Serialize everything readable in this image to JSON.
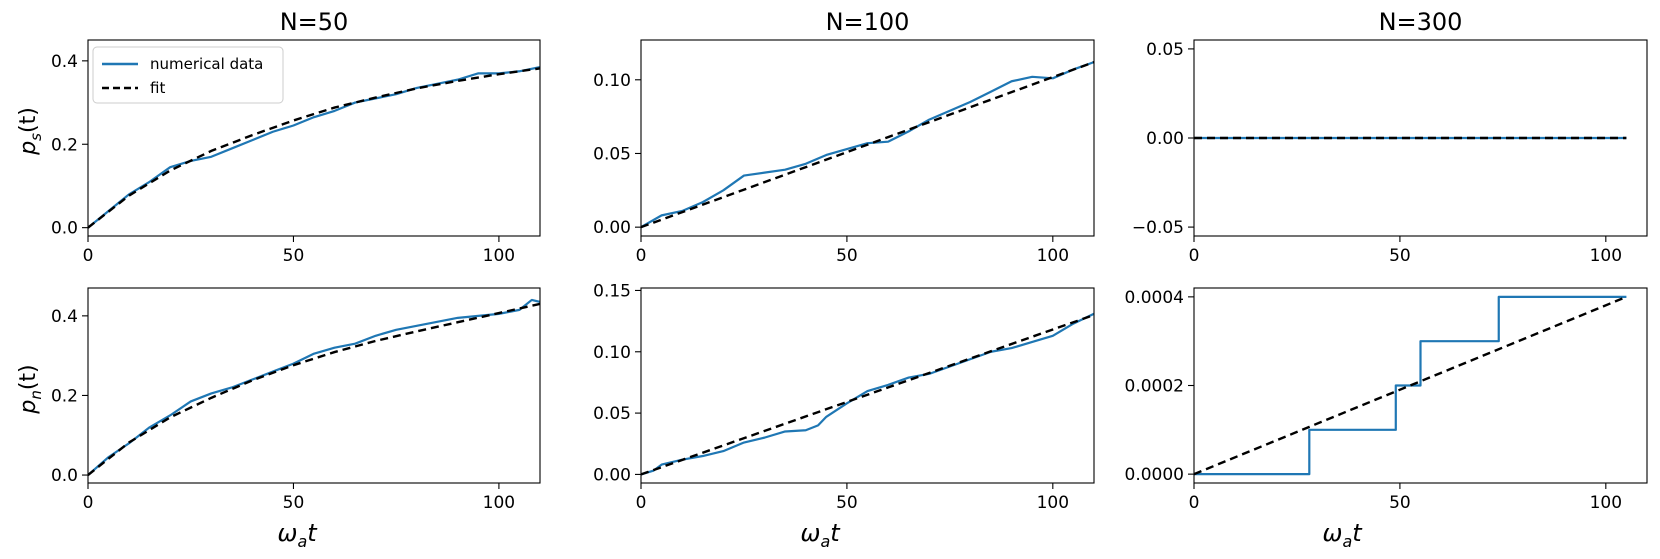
{
  "legend": {
    "entries": [
      {
        "label": "numerical data",
        "color": "#1f77b4",
        "style": "solid"
      },
      {
        "label": "fit",
        "color": "#000000",
        "style": "dashed"
      }
    ],
    "placement": "upper-left of top-left panel"
  },
  "row_labels": {
    "top": {
      "base": "p",
      "sub": "s",
      "tail": "(t)"
    },
    "bottom": {
      "base": "p",
      "sub": "n",
      "tail": "(t)"
    }
  },
  "x_label": {
    "base": "ω",
    "sub": "a",
    "tail": "t"
  },
  "colors": {
    "data": "#1f77b4",
    "fit": "#000000"
  },
  "chart_data": [
    {
      "type": "line",
      "title": "N=50",
      "xlabel": "",
      "ylabel": "p_s(t)",
      "xlim": [
        0,
        110
      ],
      "ylim": [
        -0.02,
        0.45
      ],
      "xticks": [
        0,
        50,
        100
      ],
      "xtick_labels": [
        "0",
        "50",
        "100"
      ],
      "yticks": [
        0,
        0.2,
        0.4
      ],
      "ytick_labels": [
        "0.0",
        "0.2",
        "0.4"
      ],
      "series": [
        {
          "name": "numerical data",
          "style": "data",
          "x": [
            0,
            5,
            10,
            15,
            20,
            25,
            30,
            35,
            40,
            45,
            50,
            55,
            60,
            65,
            70,
            75,
            80,
            85,
            90,
            95,
            100,
            105,
            110
          ],
          "y": [
            0,
            0.04,
            0.08,
            0.11,
            0.145,
            0.16,
            0.17,
            0.19,
            0.21,
            0.23,
            0.245,
            0.265,
            0.28,
            0.3,
            0.31,
            0.32,
            0.335,
            0.345,
            0.355,
            0.37,
            0.37,
            0.375,
            0.385
          ]
        },
        {
          "name": "fit",
          "style": "fit",
          "x": [
            0,
            10,
            20,
            30,
            40,
            50,
            60,
            70,
            80,
            90,
            100,
            110
          ],
          "y": [
            0,
            0.077,
            0.137,
            0.184,
            0.222,
            0.257,
            0.288,
            0.312,
            0.334,
            0.352,
            0.368,
            0.382
          ]
        }
      ]
    },
    {
      "type": "line",
      "title": "N=100",
      "xlabel": "",
      "ylabel": "",
      "xlim": [
        0,
        110
      ],
      "ylim": [
        -0.006,
        0.127
      ],
      "xticks": [
        0,
        50,
        100
      ],
      "xtick_labels": [
        "0",
        "50",
        "100"
      ],
      "yticks": [
        0,
        0.05,
        0.1
      ],
      "ytick_labels": [
        "0.00",
        "0.05",
        "0.10"
      ],
      "series": [
        {
          "name": "numerical data",
          "style": "data",
          "x": [
            0,
            5,
            10,
            15,
            20,
            25,
            30,
            35,
            40,
            45,
            50,
            55,
            60,
            65,
            70,
            75,
            80,
            85,
            90,
            95,
            100,
            105,
            110
          ],
          "y": [
            0,
            0.008,
            0.011,
            0.017,
            0.025,
            0.035,
            0.037,
            0.039,
            0.043,
            0.049,
            0.053,
            0.057,
            0.058,
            0.065,
            0.073,
            0.079,
            0.085,
            0.092,
            0.099,
            0.102,
            0.101,
            0.107,
            0.112
          ]
        },
        {
          "name": "fit",
          "style": "fit",
          "x": [
            0,
            110
          ],
          "y": [
            0,
            0.112
          ]
        }
      ]
    },
    {
      "type": "line",
      "title": "N=300",
      "xlabel": "",
      "ylabel": "",
      "xlim": [
        0,
        110
      ],
      "ylim": [
        -0.055,
        0.055
      ],
      "xticks": [
        0,
        50,
        100
      ],
      "xtick_labels": [
        "0",
        "50",
        "100"
      ],
      "yticks": [
        -0.05,
        0,
        0.05
      ],
      "ytick_labels": [
        "−0.05",
        "0.00",
        "0.05"
      ],
      "series": [
        {
          "name": "numerical data",
          "style": "data",
          "x": [
            0,
            105
          ],
          "y": [
            0,
            0
          ]
        },
        {
          "name": "fit",
          "style": "fit",
          "x": [
            0,
            105
          ],
          "y": [
            0,
            0
          ]
        }
      ]
    },
    {
      "type": "line",
      "title": "",
      "xlabel": "ω_a t",
      "ylabel": "p_n(t)",
      "xlim": [
        0,
        110
      ],
      "ylim": [
        -0.02,
        0.47
      ],
      "xticks": [
        0,
        50,
        100
      ],
      "xtick_labels": [
        "0",
        "50",
        "100"
      ],
      "yticks": [
        0,
        0.2,
        0.4
      ],
      "ytick_labels": [
        "0.0",
        "0.2",
        "0.4"
      ],
      "series": [
        {
          "name": "numerical data",
          "style": "data",
          "x": [
            0,
            5,
            10,
            15,
            20,
            25,
            30,
            35,
            40,
            45,
            50,
            55,
            60,
            65,
            70,
            75,
            80,
            85,
            90,
            95,
            100,
            105,
            108,
            110
          ],
          "y": [
            0,
            0.045,
            0.08,
            0.12,
            0.15,
            0.185,
            0.205,
            0.22,
            0.24,
            0.26,
            0.28,
            0.305,
            0.32,
            0.33,
            0.35,
            0.365,
            0.375,
            0.385,
            0.395,
            0.4,
            0.405,
            0.415,
            0.44,
            0.435
          ]
        },
        {
          "name": "fit",
          "style": "fit",
          "x": [
            0,
            10,
            20,
            30,
            40,
            50,
            60,
            70,
            80,
            90,
            100,
            110
          ],
          "y": [
            0,
            0.082,
            0.145,
            0.194,
            0.238,
            0.276,
            0.309,
            0.337,
            0.361,
            0.384,
            0.407,
            0.43
          ]
        }
      ]
    },
    {
      "type": "line",
      "title": "",
      "xlabel": "ω_a t",
      "ylabel": "",
      "xlim": [
        0,
        110
      ],
      "ylim": [
        -0.007,
        0.152
      ],
      "xticks": [
        0,
        50,
        100
      ],
      "xtick_labels": [
        "0",
        "50",
        "100"
      ],
      "yticks": [
        0,
        0.05,
        0.1,
        0.15
      ],
      "ytick_labels": [
        "0.00",
        "0.05",
        "0.10",
        "0.15"
      ],
      "series": [
        {
          "name": "numerical data",
          "style": "data",
          "x": [
            0,
            3,
            5,
            10,
            15,
            20,
            25,
            30,
            35,
            40,
            43,
            45,
            50,
            55,
            60,
            65,
            70,
            75,
            80,
            85,
            90,
            95,
            100,
            105,
            110
          ],
          "y": [
            0,
            0.003,
            0.008,
            0.012,
            0.015,
            0.019,
            0.026,
            0.03,
            0.035,
            0.036,
            0.04,
            0.047,
            0.058,
            0.068,
            0.073,
            0.079,
            0.082,
            0.088,
            0.094,
            0.1,
            0.103,
            0.108,
            0.113,
            0.123,
            0.131
          ]
        },
        {
          "name": "fit",
          "style": "fit",
          "x": [
            0,
            110
          ],
          "y": [
            0,
            0.13
          ]
        }
      ]
    },
    {
      "type": "line",
      "title": "",
      "xlabel": "ω_a t",
      "ylabel": "",
      "xlim": [
        0,
        110
      ],
      "ylim": [
        -2e-05,
        0.00042
      ],
      "xticks": [
        0,
        50,
        100
      ],
      "xtick_labels": [
        "0",
        "50",
        "100"
      ],
      "yticks": [
        0,
        0.0002,
        0.0004
      ],
      "ytick_labels": [
        "0.0000",
        "0.0002",
        "0.0004"
      ],
      "series": [
        {
          "name": "numerical data",
          "style": "data",
          "x": [
            0,
            28,
            28,
            49,
            49,
            55,
            55,
            74,
            74,
            105
          ],
          "y": [
            0,
            0,
            0.0001,
            0.0001,
            0.0002,
            0.0002,
            0.0003,
            0.0003,
            0.0004,
            0.0004
          ]
        },
        {
          "name": "fit",
          "style": "fit",
          "x": [
            0,
            105
          ],
          "y": [
            0,
            0.0004
          ]
        }
      ]
    }
  ]
}
